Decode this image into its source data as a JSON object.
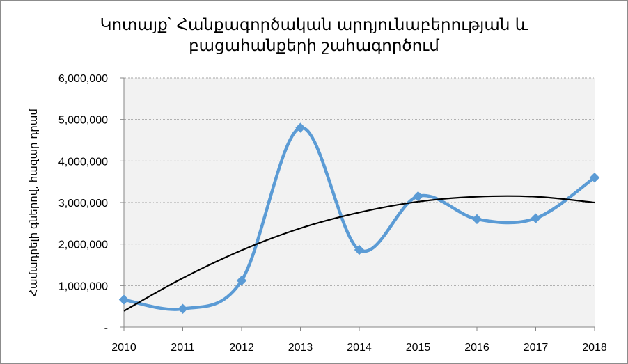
{
  "chart_data": {
    "type": "line",
    "title_lines": [
      "Կոտայք՝ Հանքագործական արդյունաբերության և",
      "բացահանքերի շահագործում"
    ],
    "xlabel": "",
    "ylabel": "Համադրելի գներով, հազար դրամ",
    "categories": [
      "2010",
      "2011",
      "2012",
      "2013",
      "2014",
      "2015",
      "2016",
      "2017",
      "2018"
    ],
    "series": [
      {
        "values": [
          660000,
          440000,
          1120000,
          4800000,
          1860000,
          3150000,
          2600000,
          2620000,
          3600000
        ],
        "color": "#5b9bd5",
        "marker": "diamond",
        "smooth": true
      }
    ],
    "trendline": {
      "type": "polynomial",
      "color": "#000000",
      "values": [
        390000,
        1180000,
        1850000,
        2380000,
        2760000,
        3020000,
        3140000,
        3140000,
        3000000
      ]
    },
    "ylim": [
      0,
      6000000
    ],
    "yticks": [
      "-",
      "1,000,000",
      "2,000,000",
      "3,000,000",
      "4,000,000",
      "5,000,000",
      "6,000,000"
    ],
    "grid": true,
    "plot_background": "#f2f2f2",
    "gridline_color": "#a6a6a6"
  }
}
